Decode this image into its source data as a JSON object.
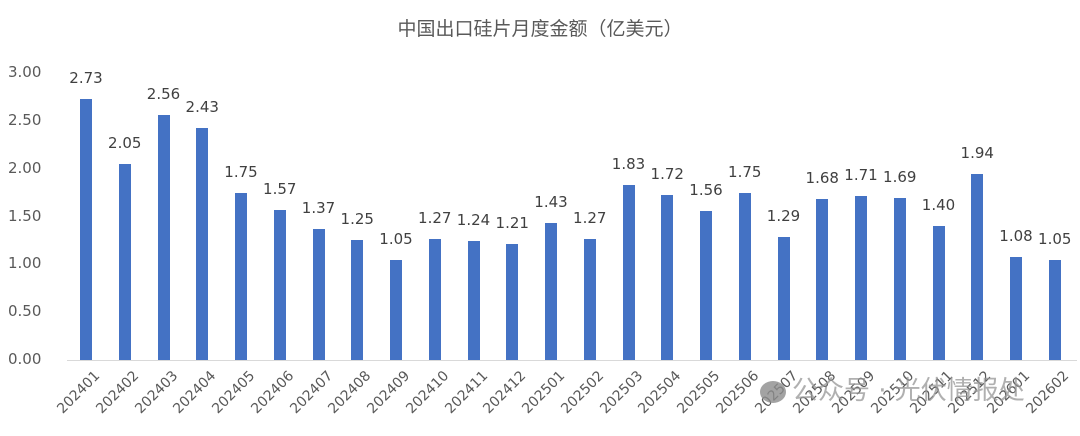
{
  "chart_data": {
    "type": "bar",
    "title": "中国出口硅片月度金额（亿美元）",
    "xlabel": "",
    "ylabel": "",
    "ylim": [
      0,
      3
    ],
    "yticks": [
      "0.00",
      "0.50",
      "1.00",
      "1.50",
      "2.00",
      "2.50",
      "3.00"
    ],
    "grid": false,
    "legend": null,
    "bar_color": "#4472c4",
    "categories": [
      "202401",
      "202402",
      "202403",
      "202404",
      "202405",
      "202406",
      "202407",
      "202408",
      "202409",
      "202410",
      "202411",
      "202412",
      "202501",
      "202502",
      "202503",
      "202504",
      "202505",
      "202506",
      "202507",
      "202508",
      "202509",
      "202510",
      "202511",
      "202512",
      "202601",
      "202602"
    ],
    "values": [
      2.73,
      2.05,
      2.56,
      2.43,
      1.75,
      1.57,
      1.37,
      1.25,
      1.05,
      1.27,
      1.24,
      1.21,
      1.43,
      1.27,
      1.83,
      1.72,
      1.56,
      1.75,
      1.29,
      1.68,
      1.71,
      1.69,
      1.4,
      1.94,
      1.08,
      1.05
    ],
    "value_labels": [
      "2.73",
      "2.05",
      "2.56",
      "2.43",
      "1.75",
      "1.57",
      "1.37",
      "1.25",
      "1.05",
      "1.27",
      "1.24",
      "1.21",
      "1.43",
      "1.27",
      "1.83",
      "1.72",
      "1.56",
      "1.75",
      "1.29",
      "1.68",
      "1.71",
      "1.69",
      "1.40",
      "1.94",
      "1.08",
      "1.05"
    ]
  },
  "watermark": {
    "text": "公众号 · 光伏情报处",
    "icon": "wechat-icon"
  }
}
